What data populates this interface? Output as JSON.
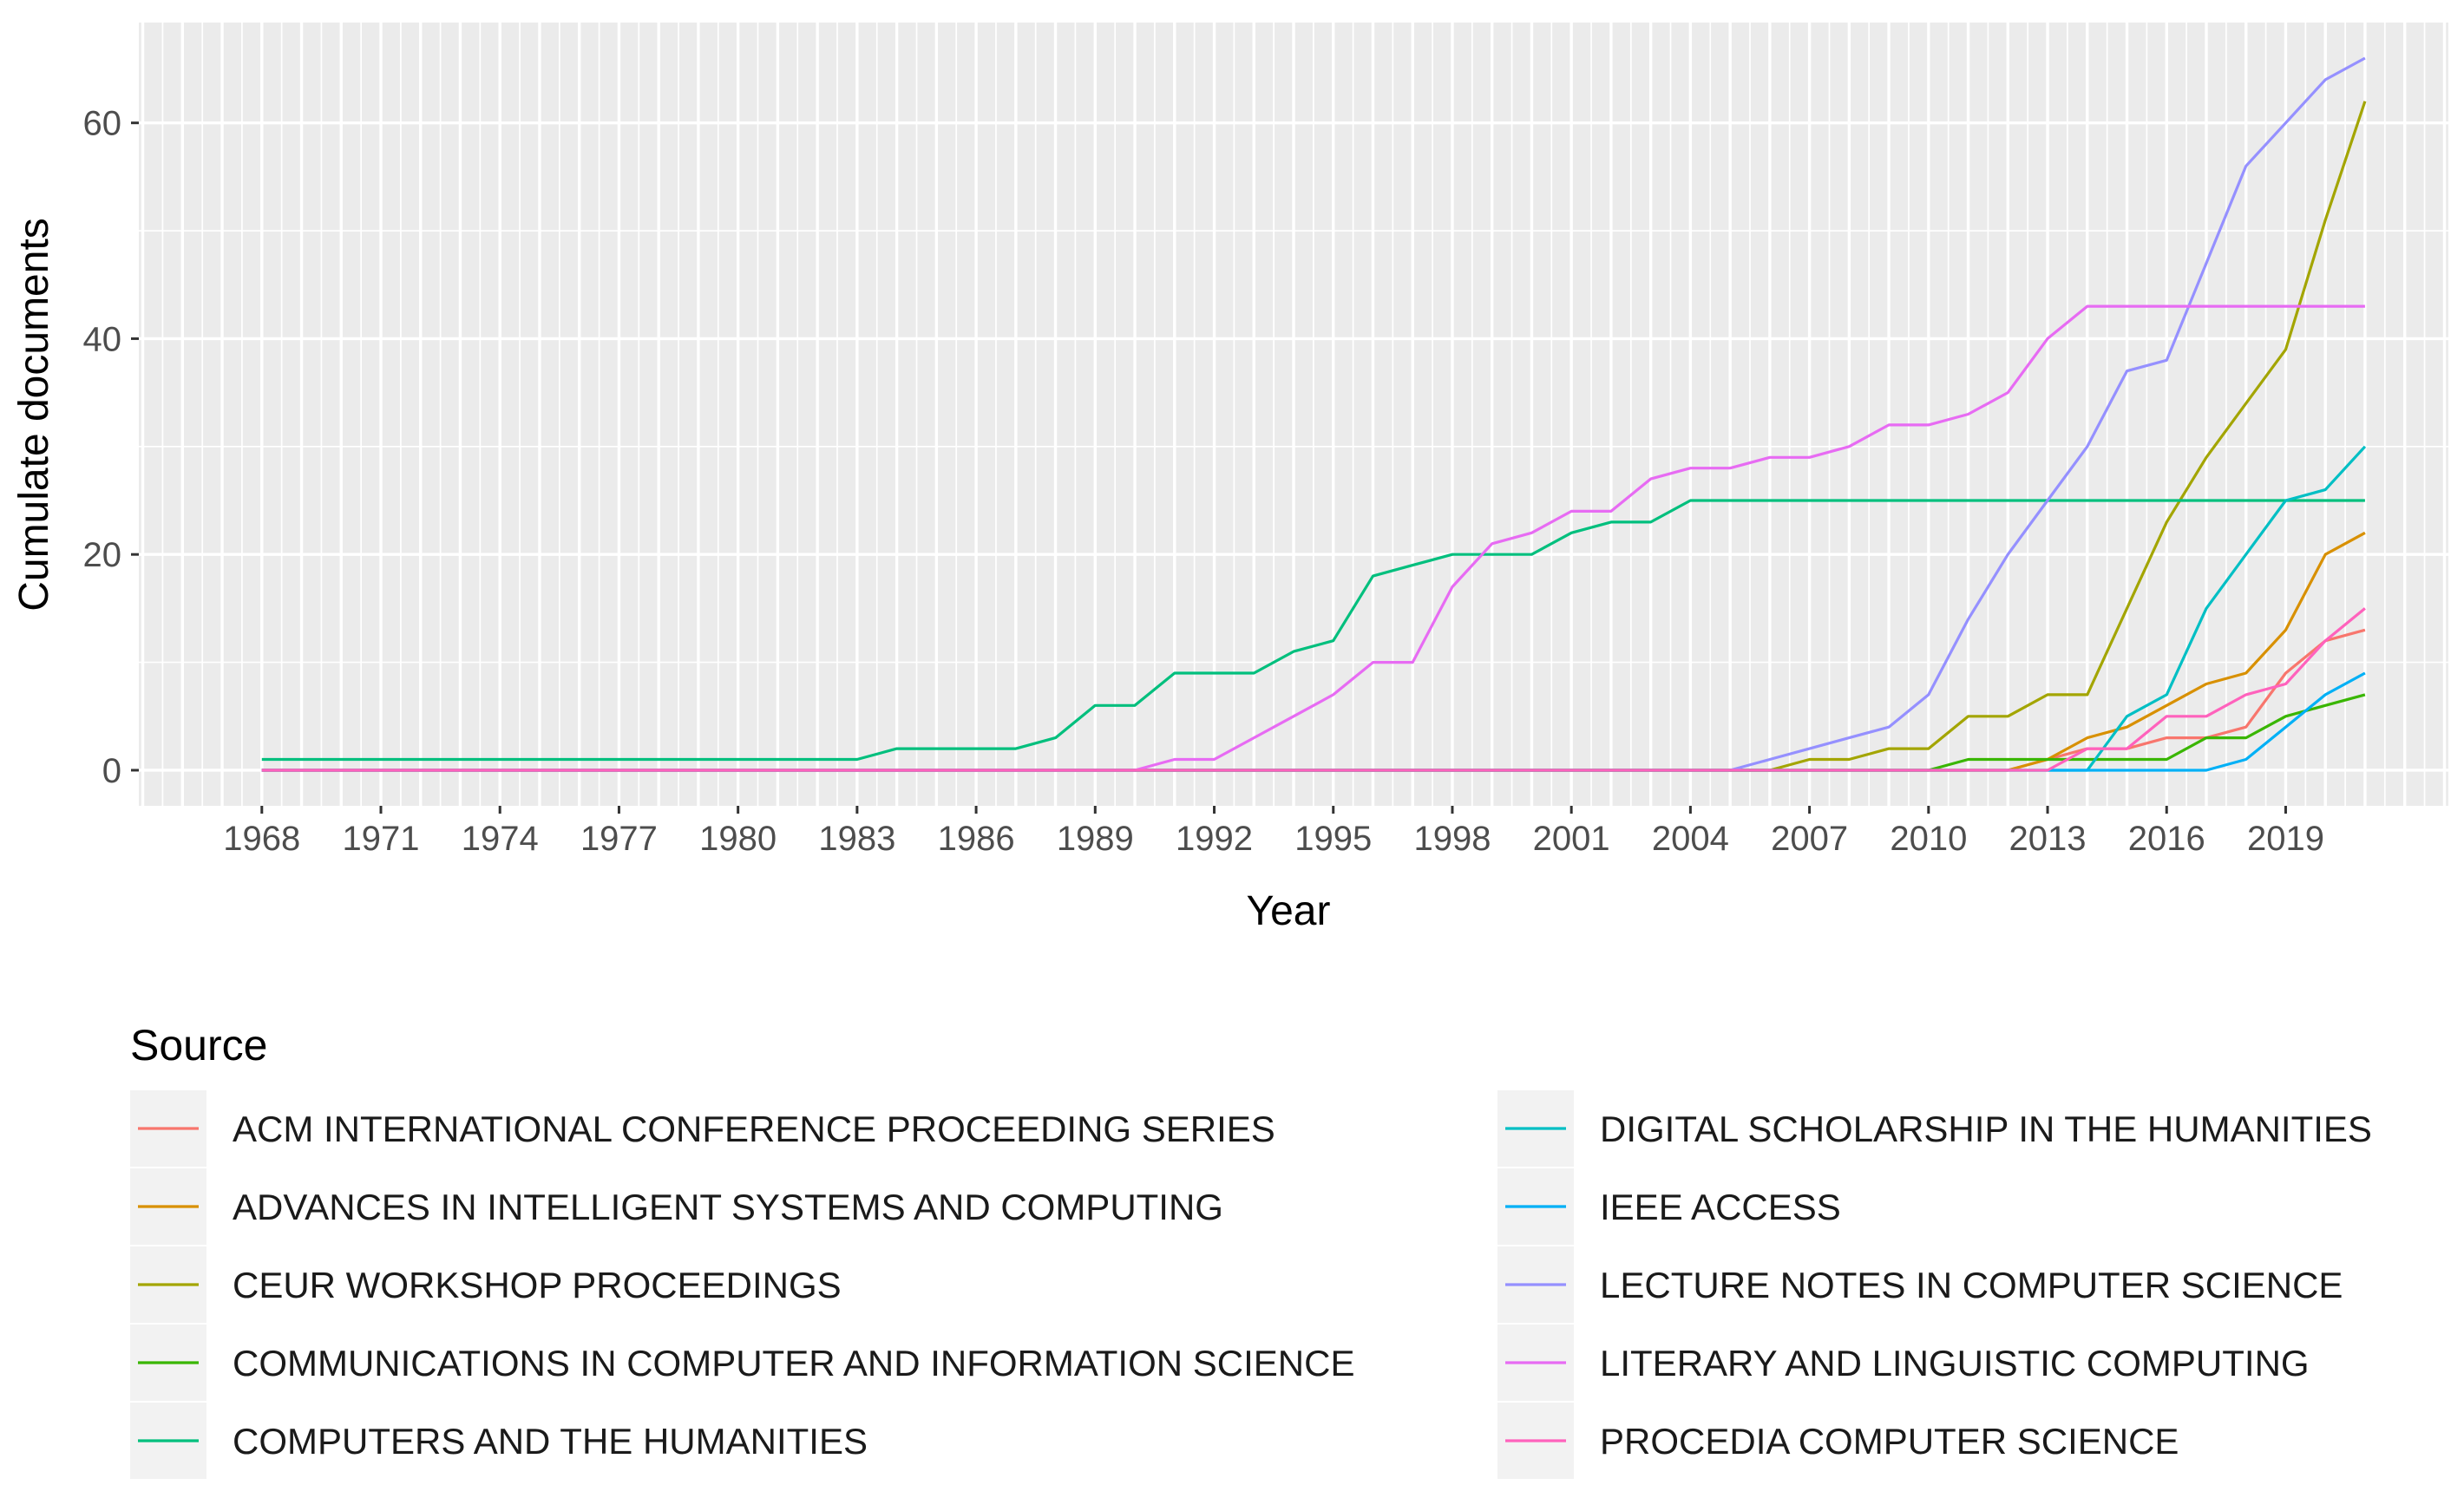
{
  "chart_data": {
    "type": "line",
    "title": "",
    "xlabel": "Year",
    "ylabel": "Cumulate documents",
    "xlim": [
      1964.9,
      2023.1
    ],
    "ylim": [
      -3.3,
      69.3
    ],
    "x_ticks": [
      "1968",
      "1971",
      "1974",
      "1977",
      "1980",
      "1983",
      "1986",
      "1989",
      "1992",
      "1995",
      "1998",
      "2001",
      "2004",
      "2007",
      "2010",
      "2013",
      "2016",
      "2019"
    ],
    "y_ticks": [
      "0",
      "20",
      "40",
      "60"
    ],
    "grid": true,
    "legend": {
      "title": "Source",
      "position": "bottom",
      "columns": 2
    },
    "series": [
      {
        "name": "ACM INTERNATIONAL CONFERENCE PROCEEDING SERIES",
        "color": "#F8766D",
        "points": [
          [
            1968,
            0
          ],
          [
            2012,
            0
          ],
          [
            2013,
            1
          ],
          [
            2014,
            2
          ],
          [
            2015,
            2
          ],
          [
            2016,
            3
          ],
          [
            2017,
            3
          ],
          [
            2018,
            4
          ],
          [
            2019,
            9
          ],
          [
            2020,
            12
          ],
          [
            2021,
            13
          ]
        ]
      },
      {
        "name": "ADVANCES IN INTELLIGENT SYSTEMS AND COMPUTING",
        "color": "#D89000",
        "points": [
          [
            1968,
            0
          ],
          [
            2012,
            0
          ],
          [
            2013,
            1
          ],
          [
            2014,
            3
          ],
          [
            2015,
            4
          ],
          [
            2016,
            6
          ],
          [
            2017,
            8
          ],
          [
            2018,
            9
          ],
          [
            2019,
            13
          ],
          [
            2020,
            20
          ],
          [
            2021,
            22
          ]
        ]
      },
      {
        "name": "CEUR WORKSHOP PROCEEDINGS",
        "color": "#A3A500",
        "points": [
          [
            1968,
            0
          ],
          [
            2005,
            0
          ],
          [
            2006,
            0
          ],
          [
            2007,
            1
          ],
          [
            2008,
            1
          ],
          [
            2009,
            2
          ],
          [
            2010,
            2
          ],
          [
            2011,
            5
          ],
          [
            2012,
            5
          ],
          [
            2013,
            7
          ],
          [
            2014,
            7
          ],
          [
            2015,
            15
          ],
          [
            2016,
            23
          ],
          [
            2017,
            29
          ],
          [
            2018,
            34
          ],
          [
            2019,
            39
          ],
          [
            2020,
            51
          ],
          [
            2021,
            62
          ]
        ]
      },
      {
        "name": "COMMUNICATIONS IN COMPUTER AND INFORMATION SCIENCE",
        "color": "#39B600",
        "points": [
          [
            1968,
            0
          ],
          [
            2010,
            0
          ],
          [
            2011,
            1
          ],
          [
            2012,
            1
          ],
          [
            2013,
            1
          ],
          [
            2014,
            1
          ],
          [
            2015,
            1
          ],
          [
            2016,
            1
          ],
          [
            2017,
            3
          ],
          [
            2018,
            3
          ],
          [
            2019,
            5
          ],
          [
            2020,
            6
          ],
          [
            2021,
            7
          ]
        ]
      },
      {
        "name": "COMPUTERS AND THE HUMANITIES",
        "color": "#00BF7D",
        "points": [
          [
            1968,
            1
          ],
          [
            1983,
            1
          ],
          [
            1984,
            2
          ],
          [
            1985,
            2
          ],
          [
            1986,
            2
          ],
          [
            1987,
            2
          ],
          [
            1988,
            3
          ],
          [
            1989,
            6
          ],
          [
            1990,
            6
          ],
          [
            1991,
            9
          ],
          [
            1992,
            9
          ],
          [
            1993,
            9
          ],
          [
            1994,
            11
          ],
          [
            1995,
            12
          ],
          [
            1996,
            18
          ],
          [
            1997,
            19
          ],
          [
            1998,
            20
          ],
          [
            1999,
            20
          ],
          [
            2000,
            20
          ],
          [
            2001,
            22
          ],
          [
            2002,
            23
          ],
          [
            2003,
            23
          ],
          [
            2004,
            25
          ],
          [
            2021,
            25
          ]
        ]
      },
      {
        "name": "DIGITAL SCHOLARSHIP IN THE HUMANITIES",
        "color": "#00BFC4",
        "points": [
          [
            1968,
            0
          ],
          [
            2014,
            0
          ],
          [
            2015,
            5
          ],
          [
            2016,
            7
          ],
          [
            2017,
            15
          ],
          [
            2018,
            20
          ],
          [
            2019,
            25
          ],
          [
            2020,
            26
          ],
          [
            2021,
            30
          ]
        ]
      },
      {
        "name": "IEEE ACCESS",
        "color": "#00B0F6",
        "points": [
          [
            1968,
            0
          ],
          [
            2017,
            0
          ],
          [
            2018,
            1
          ],
          [
            2019,
            4
          ],
          [
            2020,
            7
          ],
          [
            2021,
            9
          ]
        ]
      },
      {
        "name": "LECTURE NOTES IN COMPUTER SCIENCE",
        "color": "#9590FF",
        "points": [
          [
            1968,
            0
          ],
          [
            2005,
            0
          ],
          [
            2006,
            1
          ],
          [
            2007,
            2
          ],
          [
            2008,
            3
          ],
          [
            2009,
            4
          ],
          [
            2010,
            7
          ],
          [
            2011,
            14
          ],
          [
            2012,
            20
          ],
          [
            2013,
            25
          ],
          [
            2014,
            30
          ],
          [
            2015,
            37
          ],
          [
            2016,
            38
          ],
          [
            2017,
            47
          ],
          [
            2018,
            56
          ],
          [
            2019,
            60
          ],
          [
            2020,
            64
          ],
          [
            2021,
            66
          ]
        ]
      },
      {
        "name": "LITERARY AND LINGUISTIC COMPUTING",
        "color": "#E76BF3",
        "points": [
          [
            1968,
            0
          ],
          [
            1990,
            0
          ],
          [
            1991,
            1
          ],
          [
            1992,
            1
          ],
          [
            1993,
            3
          ],
          [
            1994,
            5
          ],
          [
            1995,
            7
          ],
          [
            1996,
            10
          ],
          [
            1997,
            10
          ],
          [
            1998,
            17
          ],
          [
            1999,
            21
          ],
          [
            2000,
            22
          ],
          [
            2001,
            24
          ],
          [
            2002,
            24
          ],
          [
            2003,
            27
          ],
          [
            2004,
            28
          ],
          [
            2005,
            28
          ],
          [
            2006,
            29
          ],
          [
            2007,
            29
          ],
          [
            2008,
            30
          ],
          [
            2009,
            32
          ],
          [
            2010,
            32
          ],
          [
            2011,
            33
          ],
          [
            2012,
            35
          ],
          [
            2013,
            40
          ],
          [
            2014,
            43
          ],
          [
            2021,
            43
          ]
        ]
      },
      {
        "name": "PROCEDIA COMPUTER SCIENCE",
        "color": "#FF62BC",
        "points": [
          [
            1968,
            0
          ],
          [
            2013,
            0
          ],
          [
            2014,
            2
          ],
          [
            2015,
            2
          ],
          [
            2016,
            5
          ],
          [
            2017,
            5
          ],
          [
            2018,
            7
          ],
          [
            2019,
            8
          ],
          [
            2020,
            12
          ],
          [
            2021,
            15
          ]
        ]
      }
    ]
  }
}
